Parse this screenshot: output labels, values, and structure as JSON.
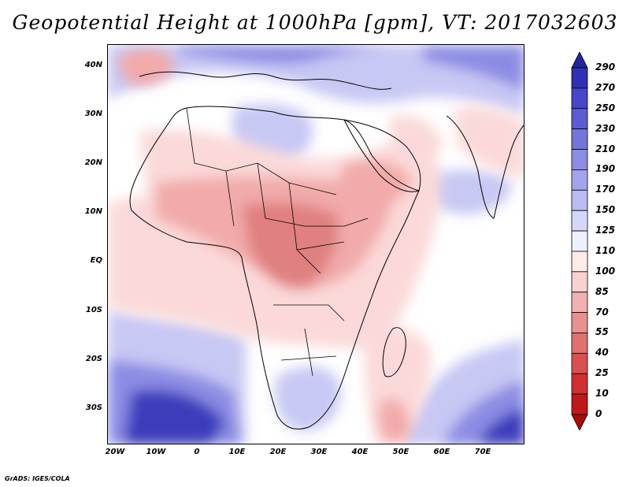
{
  "title": "Geopotential Height at 1000hPa [gpm], VT: 2017032603",
  "credit": "GrADS: IGES/COLA",
  "y_axis": [
    "40N",
    "30N",
    "20N",
    "10N",
    "EQ",
    "10S",
    "20S",
    "30S"
  ],
  "x_axis": [
    "20W",
    "10W",
    "0",
    "10E",
    "20E",
    "30E",
    "40E",
    "50E",
    "60E",
    "70E"
  ],
  "colorbar": {
    "levels": [
      "290",
      "270",
      "250",
      "230",
      "210",
      "190",
      "170",
      "150",
      "125",
      "110",
      "100",
      "85",
      "70",
      "55",
      "40",
      "25",
      "10",
      "0"
    ],
    "colors": [
      "#24249c",
      "#3030b4",
      "#4646c8",
      "#5c5cd2",
      "#7474dc",
      "#8c8ce4",
      "#a4a4ec",
      "#bcbcf2",
      "#d6d6f8",
      "#f0f0fc",
      "#fdebeb",
      "#fad0d0",
      "#f2b0b0",
      "#e89090",
      "#e07070",
      "#d85050",
      "#d03030",
      "#c01818",
      "#a80c0c"
    ]
  },
  "map_colors": {
    "ocean_blue_light": "#c8c8f4",
    "ocean_blue_mid": "#8c8ce4",
    "ocean_blue_dark": "#3c3cbc",
    "neutral": "#ffffff",
    "pink_light": "#fbd9d9",
    "pink_mid": "#f2aaaa",
    "pink_dark": "#e08080"
  }
}
